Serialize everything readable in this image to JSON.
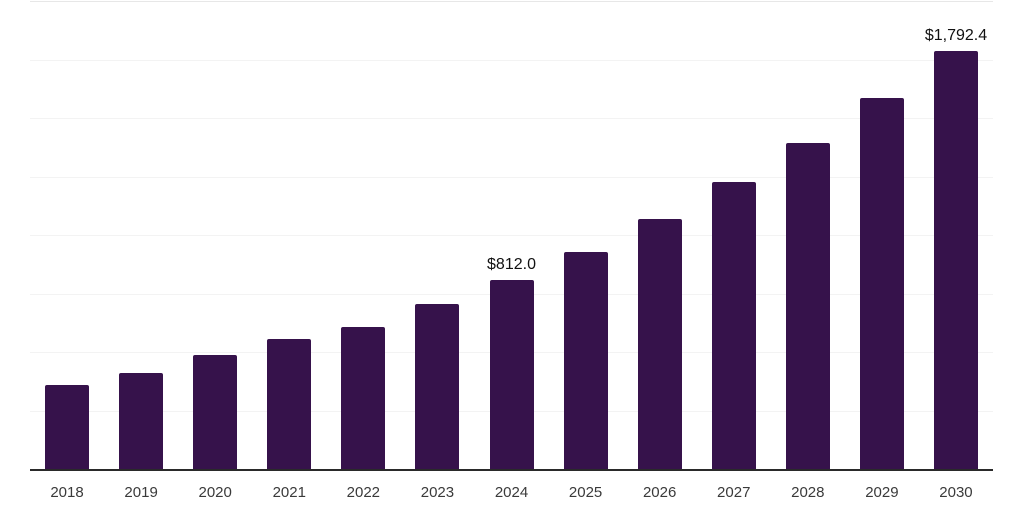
{
  "chart_data": {
    "type": "bar",
    "title": "",
    "xlabel": "",
    "ylabel": "",
    "categories": [
      "2018",
      "2019",
      "2020",
      "2021",
      "2022",
      "2023",
      "2024",
      "2025",
      "2026",
      "2027",
      "2028",
      "2029",
      "2030"
    ],
    "values": [
      363,
      415,
      491,
      560,
      611,
      709,
      812.0,
      932,
      1073,
      1231,
      1397,
      1590,
      1792.4
    ],
    "value_labels": [
      "",
      "",
      "",
      "",
      "",
      "",
      "$812.0",
      "",
      "",
      "",
      "",
      "",
      "$1,792.4"
    ],
    "ylim": [
      0,
      2000
    ],
    "gridline_step": 250,
    "grid": "horizontal gridlines only, no y-axis tick labels",
    "legend": "none",
    "colors": {
      "bar": "#36124b",
      "gridline": "#f3f3f3",
      "top_gridline": "#e7e7e7",
      "axis_line": "#2a2a2a",
      "tick_label": "#3a3a3a",
      "value_label": "#111111",
      "background": "#ffffff"
    }
  }
}
